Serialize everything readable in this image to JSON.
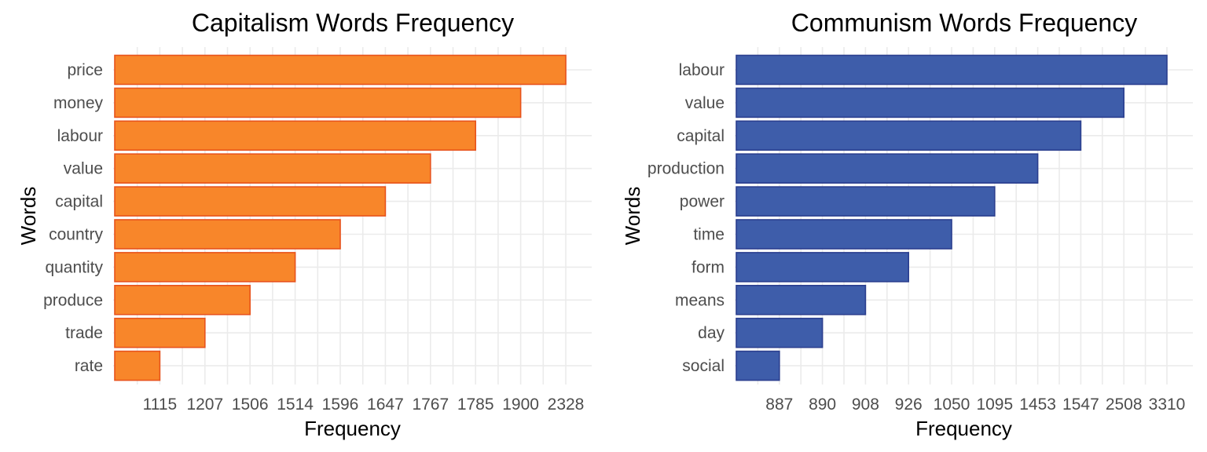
{
  "chart_data": [
    {
      "type": "bar",
      "orientation": "horizontal",
      "title": "Capitalism Words Frequency",
      "xlabel": "Frequency",
      "ylabel": "Words",
      "categories": [
        "price",
        "money",
        "labour",
        "value",
        "capital",
        "country",
        "quantity",
        "produce",
        "trade",
        "rate"
      ],
      "values": [
        2328,
        1900,
        1785,
        1767,
        1647,
        1596,
        1514,
        1506,
        1207,
        1115
      ],
      "x_tick_labels": [
        "1115",
        "1207",
        "1506",
        "1514",
        "1596",
        "1647",
        "1767",
        "1785",
        "1900",
        "2328"
      ],
      "x_axis_scale": "ordinal (tick labels evenly spaced)",
      "bar_color": "#F8862A",
      "bar_border_color": "#E8531C",
      "grid": true,
      "legend": "none"
    },
    {
      "type": "bar",
      "orientation": "horizontal",
      "title": "Communism Words Frequency",
      "xlabel": "Frequency",
      "ylabel": "Words",
      "categories": [
        "labour",
        "value",
        "capital",
        "production",
        "power",
        "time",
        "form",
        "means",
        "day",
        "social"
      ],
      "values": [
        3310,
        2508,
        1547,
        1453,
        1095,
        1050,
        926,
        908,
        890,
        887
      ],
      "x_tick_labels": [
        "887",
        "890",
        "908",
        "926",
        "1050",
        "1095",
        "1453",
        "1547",
        "2508",
        "3310"
      ],
      "x_axis_scale": "ordinal (tick labels evenly spaced)",
      "bar_color": "#3E5DAA",
      "bar_border_color": "#2B3F8F",
      "grid": true,
      "legend": "none"
    }
  ]
}
